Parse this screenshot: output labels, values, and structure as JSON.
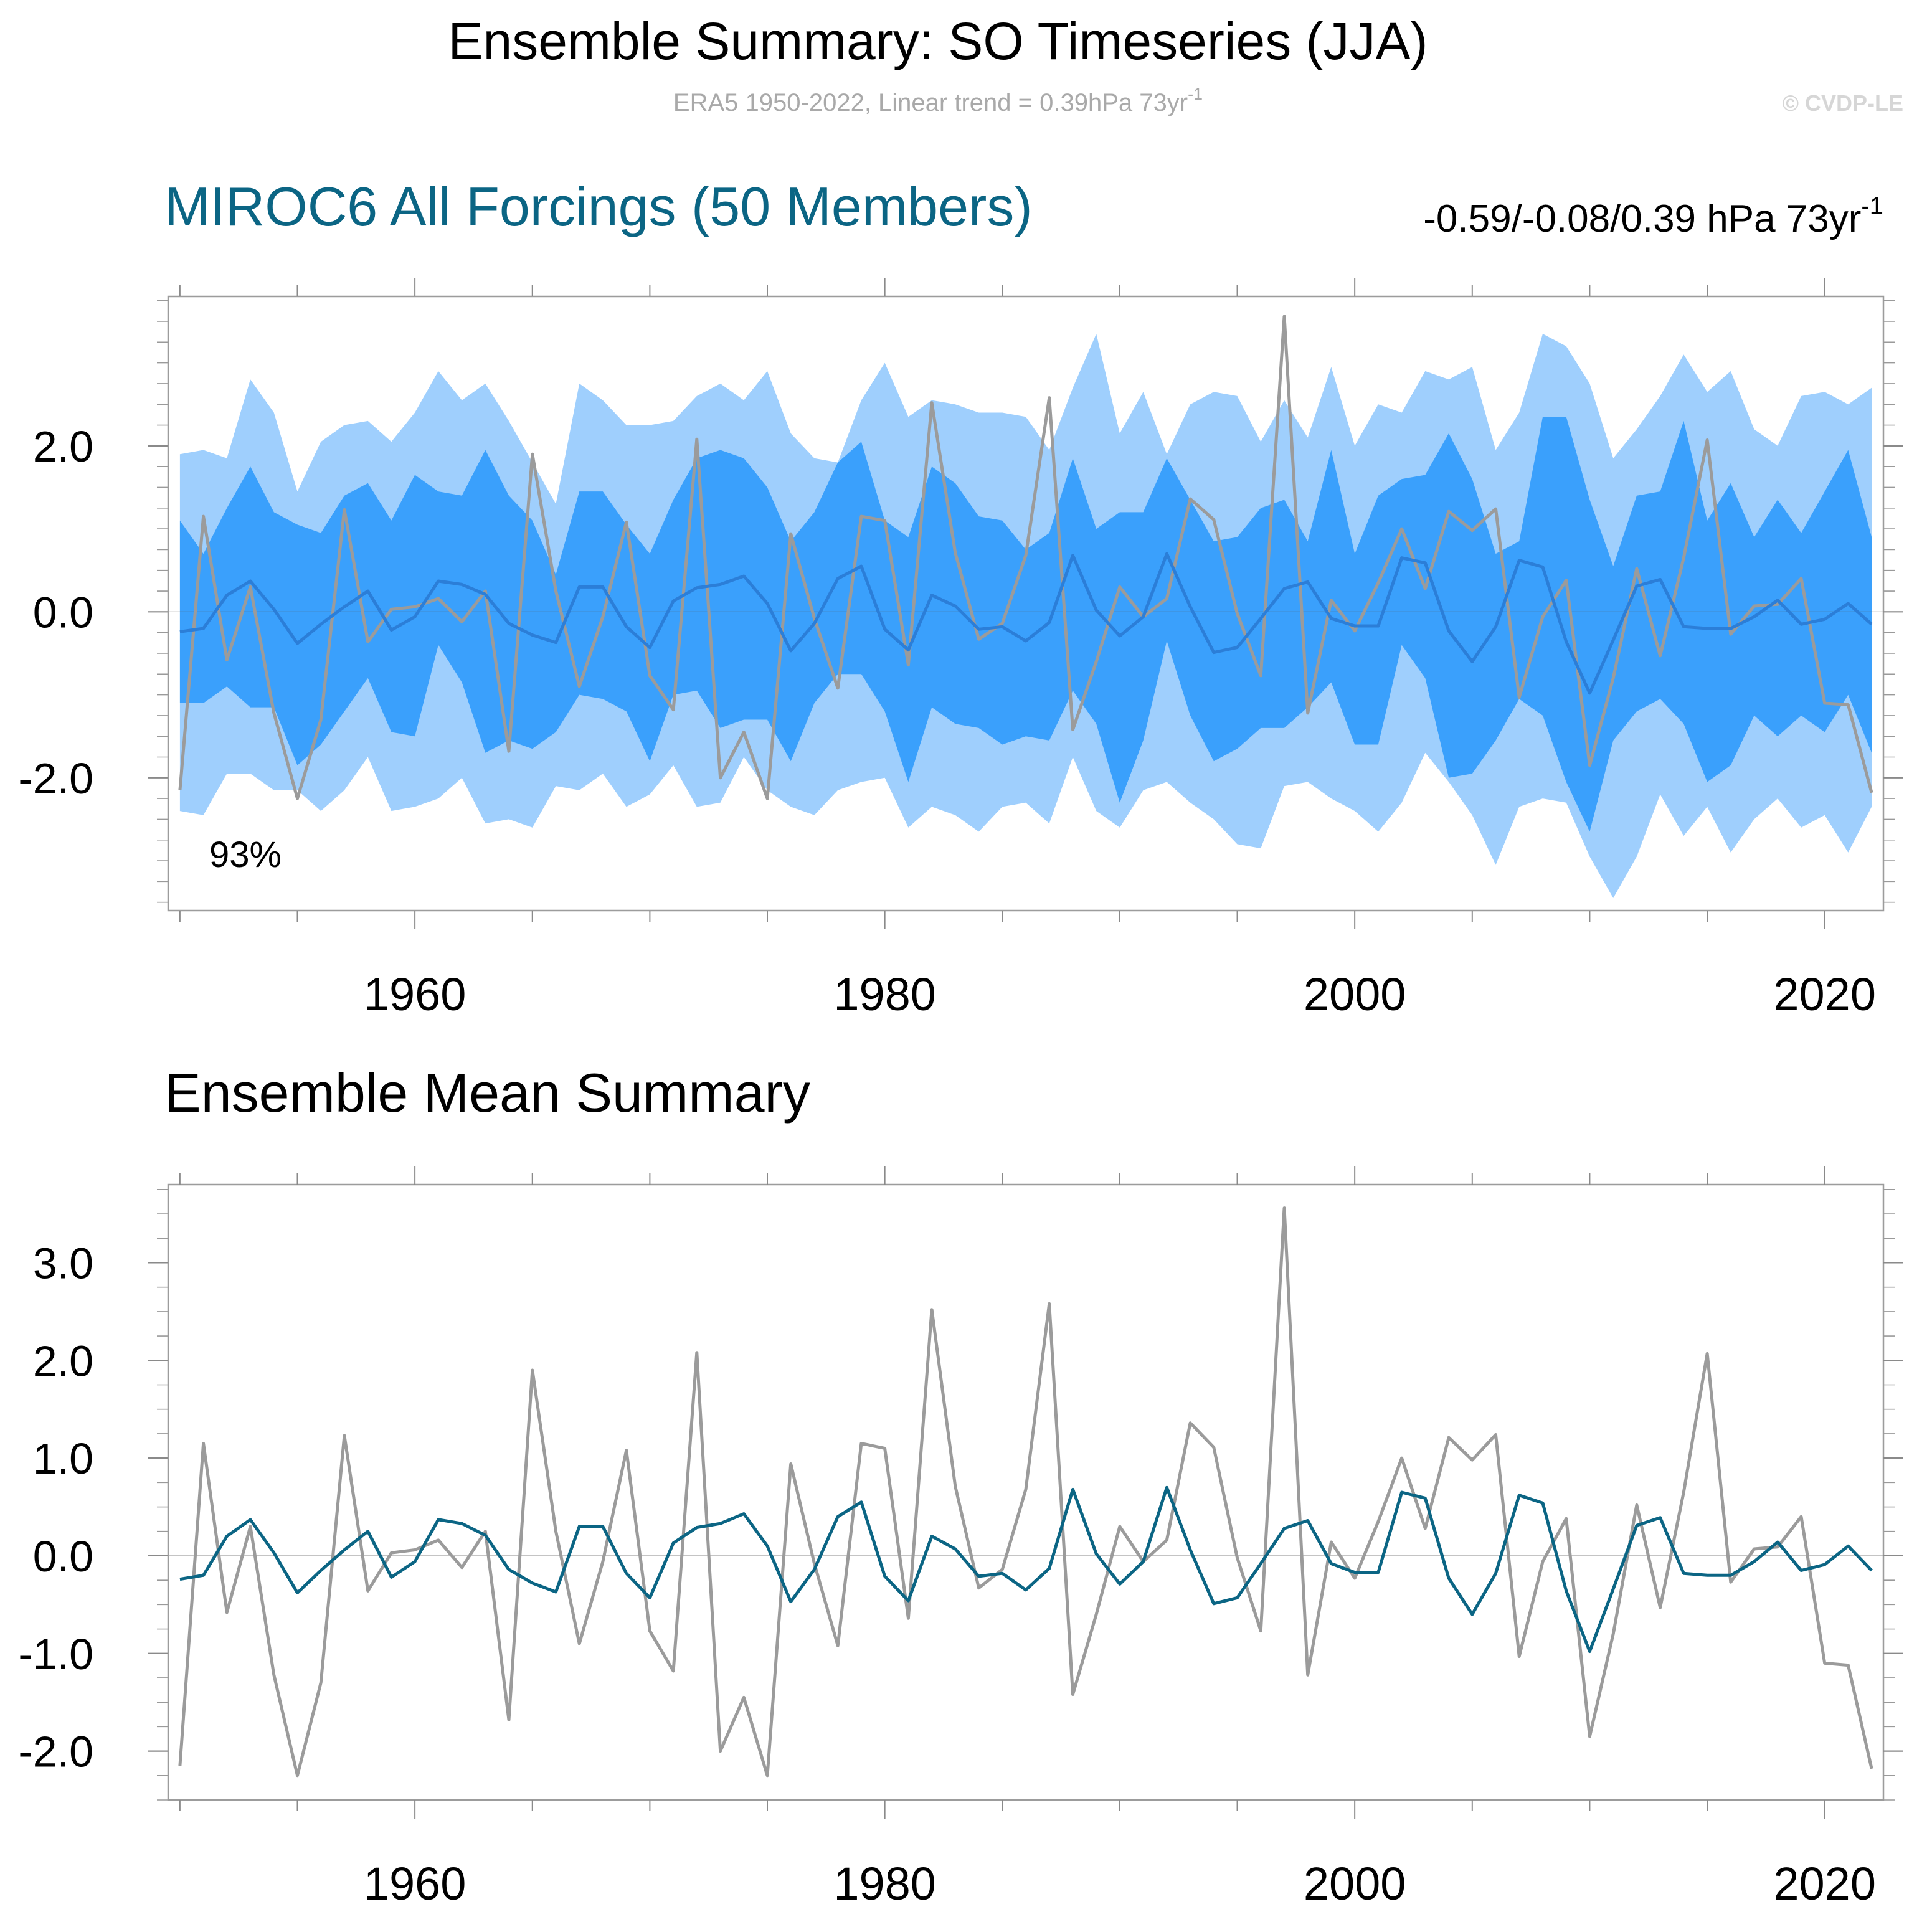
{
  "header": {
    "title": "Ensemble Summary: SO Timeseries (JJA)",
    "subtitle_main": "ERA5 1950-2022, Linear trend = 0.39hPa 73yr",
    "subtitle_sup": "-1",
    "watermark": "© CVDP-LE"
  },
  "colors": {
    "outer_band": "#9fcffd",
    "inner_band": "#3aa0fc",
    "top_ensemble_mean": "#2b7ed8",
    "bottom_ensemble_mean": "#0b6584",
    "observations": "#9b9b9b",
    "panel_title": "#0b6584",
    "frame": "#9c9c9c",
    "subtitle": "#a9a9a9",
    "watermark": "#d6d6d6"
  },
  "chart_data": [
    {
      "type": "area",
      "panel": "top",
      "title": "MIROC6 All Forcings (50 Members)",
      "trend_label_main": "-0.59/-0.08/0.39 hPa 73yr",
      "trend_label_sup": "-1",
      "annotation": "93%",
      "xlabel": "",
      "ylabel": "",
      "xlim": [
        1949.5,
        2022.5
      ],
      "ylim": [
        -3.6,
        3.8
      ],
      "x_ticks": [
        1960,
        1980,
        2000,
        2020
      ],
      "x_tick_labels": [
        "1960",
        "1980",
        "2000",
        "2020"
      ],
      "y_ticks": [
        -2,
        0,
        2
      ],
      "y_tick_labels": [
        "-2.0",
        "0.0",
        "2.0"
      ],
      "zero_line": true,
      "bands": [
        {
          "name": "min-max",
          "upper": [
            1.9,
            1.95,
            1.85,
            2.8,
            2.4,
            1.45,
            2.05,
            2.25,
            2.3,
            2.05,
            2.4,
            2.9,
            2.55,
            2.75,
            2.3,
            1.8,
            1.3,
            2.75,
            2.55,
            2.25,
            2.25,
            2.3,
            2.6,
            2.75,
            2.55,
            2.9,
            2.15,
            1.85,
            1.8,
            2.55,
            3.0,
            2.35,
            2.55,
            2.5,
            2.4,
            2.4,
            2.35,
            1.95,
            2.7,
            3.35,
            2.15,
            2.65,
            1.9,
            2.5,
            2.65,
            2.6,
            2.05,
            2.55,
            2.1,
            2.95,
            2.0,
            2.5,
            2.4,
            2.9,
            2.8,
            2.95,
            1.95,
            2.4,
            3.35,
            3.2,
            2.75,
            1.85,
            2.2,
            2.6,
            3.1,
            2.65,
            2.9,
            2.2,
            2.0,
            2.6,
            2.65,
            2.5,
            2.7
          ],
          "lower": [
            -2.4,
            -2.45,
            -1.95,
            -1.95,
            -2.15,
            -2.15,
            -2.4,
            -2.15,
            -1.75,
            -2.4,
            -2.35,
            -2.25,
            -2.0,
            -2.55,
            -2.5,
            -2.6,
            -2.1,
            -2.15,
            -1.95,
            -2.35,
            -2.2,
            -1.85,
            -2.35,
            -2.3,
            -1.75,
            -2.15,
            -2.35,
            -2.45,
            -2.15,
            -2.05,
            -2.0,
            -2.6,
            -2.35,
            -2.45,
            -2.65,
            -2.35,
            -2.3,
            -2.55,
            -1.75,
            -2.4,
            -2.6,
            -2.15,
            -2.05,
            -2.3,
            -2.5,
            -2.8,
            -2.85,
            -2.1,
            -2.05,
            -2.25,
            -2.4,
            -2.65,
            -2.3,
            -1.7,
            -2.05,
            -2.45,
            -3.05,
            -2.35,
            -2.25,
            -2.3,
            -2.95,
            -3.45,
            -2.95,
            -2.2,
            -2.7,
            -2.35,
            -2.9,
            -2.5,
            -2.25,
            -2.6,
            -2.45,
            -2.9,
            -2.35
          ]
        },
        {
          "name": "10-90 percentile",
          "upper": [
            1.1,
            0.7,
            1.25,
            1.75,
            1.2,
            1.05,
            0.95,
            1.4,
            1.55,
            1.1,
            1.65,
            1.45,
            1.4,
            1.95,
            1.4,
            1.1,
            0.45,
            1.45,
            1.45,
            1.05,
            0.7,
            1.35,
            1.85,
            1.95,
            1.85,
            1.5,
            0.85,
            1.2,
            1.8,
            2.05,
            1.1,
            0.9,
            1.75,
            1.55,
            1.15,
            1.1,
            0.75,
            0.95,
            1.85,
            1.0,
            1.2,
            1.2,
            1.85,
            1.35,
            0.85,
            0.9,
            1.25,
            1.35,
            0.85,
            1.95,
            0.7,
            1.4,
            1.6,
            1.65,
            2.15,
            1.6,
            0.7,
            0.85,
            2.35,
            2.35,
            1.35,
            0.55,
            1.4,
            1.45,
            2.3,
            1.1,
            1.55,
            0.9,
            1.35,
            0.95,
            1.45,
            1.95,
            0.9
          ],
          "lower": [
            -1.1,
            -1.1,
            -0.9,
            -1.15,
            -1.15,
            -1.85,
            -1.6,
            -1.2,
            -0.8,
            -1.45,
            -1.5,
            -0.4,
            -0.85,
            -1.7,
            -1.55,
            -1.65,
            -1.45,
            -1.0,
            -1.05,
            -1.2,
            -1.8,
            -1.0,
            -0.95,
            -1.4,
            -1.3,
            -1.3,
            -1.8,
            -1.1,
            -0.75,
            -0.75,
            -1.2,
            -2.05,
            -1.15,
            -1.35,
            -1.4,
            -1.6,
            -1.5,
            -1.55,
            -0.95,
            -1.35,
            -2.3,
            -1.55,
            -0.35,
            -1.25,
            -1.8,
            -1.65,
            -1.4,
            -1.4,
            -1.15,
            -0.85,
            -1.6,
            -1.6,
            -0.4,
            -0.8,
            -2.0,
            -1.95,
            -1.55,
            -1.05,
            -1.25,
            -2.05,
            -2.65,
            -1.55,
            -1.2,
            -1.05,
            -1.35,
            -2.05,
            -1.85,
            -1.25,
            -1.5,
            -1.25,
            -1.45,
            -1.0,
            -1.7
          ]
        }
      ],
      "series": [
        {
          "name": "ensemble mean",
          "values": [
            -0.24,
            -0.2,
            0.2,
            0.37,
            0.03,
            -0.38,
            -0.15,
            0.06,
            0.25,
            -0.22,
            -0.06,
            0.37,
            0.33,
            0.21,
            -0.14,
            -0.28,
            -0.37,
            0.3,
            0.3,
            -0.18,
            -0.43,
            0.13,
            0.29,
            0.33,
            0.43,
            0.1,
            -0.47,
            -0.14,
            0.4,
            0.55,
            -0.21,
            -0.46,
            0.2,
            0.07,
            -0.21,
            -0.18,
            -0.35,
            -0.13,
            0.68,
            0.02,
            -0.29,
            -0.06,
            0.7,
            0.06,
            -0.49,
            -0.43,
            -0.08,
            0.28,
            0.36,
            -0.08,
            -0.17,
            -0.17,
            0.65,
            0.59,
            -0.23,
            -0.6,
            -0.18,
            0.62,
            0.54,
            -0.36,
            -0.98,
            -0.34,
            0.31,
            0.39,
            -0.18,
            -0.2,
            -0.2,
            -0.06,
            0.14,
            -0.15,
            -0.09,
            0.1,
            -0.15
          ]
        },
        {
          "name": "ERA5",
          "values": [
            -2.15,
            1.15,
            -0.58,
            0.3,
            -1.22,
            -2.25,
            -1.3,
            1.23,
            -0.36,
            0.03,
            0.06,
            0.16,
            -0.12,
            0.25,
            -1.68,
            1.9,
            0.25,
            -0.9,
            -0.06,
            1.08,
            -0.77,
            -1.18,
            2.08,
            -2.0,
            -1.45,
            -2.25,
            0.94,
            -0.08,
            -0.92,
            1.15,
            1.1,
            -0.64,
            2.52,
            0.71,
            -0.33,
            -0.14,
            0.68,
            2.58,
            -1.42,
            -0.6,
            0.3,
            -0.06,
            0.16,
            1.36,
            1.11,
            -0.02,
            -0.77,
            3.56,
            -1.22,
            0.14,
            -0.23,
            0.35,
            1.0,
            0.28,
            1.21,
            0.98,
            1.24,
            -1.03,
            -0.06,
            0.38,
            -1.85,
            -0.8,
            0.52,
            -0.53,
            0.65,
            2.07,
            -0.27,
            0.07,
            0.09,
            0.4,
            -1.1,
            -1.12,
            -2.18
          ]
        }
      ]
    },
    {
      "type": "line",
      "panel": "bottom",
      "title": "Ensemble Mean Summary",
      "xlabel": "",
      "ylabel": "",
      "xlim": [
        1949.5,
        2022.5
      ],
      "ylim": [
        -2.5,
        3.8
      ],
      "x_ticks": [
        1960,
        1980,
        2000,
        2020
      ],
      "x_tick_labels": [
        "1960",
        "1980",
        "2000",
        "2020"
      ],
      "y_ticks": [
        -2,
        -1,
        0,
        1,
        2,
        3
      ],
      "y_tick_labels": [
        "-2.0",
        "-1.0",
        "0.0",
        "1.0",
        "2.0",
        "3.0"
      ],
      "zero_line": true,
      "series": [
        {
          "name": "ensemble mean",
          "values": [
            -0.24,
            -0.2,
            0.2,
            0.37,
            0.03,
            -0.38,
            -0.15,
            0.06,
            0.25,
            -0.22,
            -0.06,
            0.37,
            0.33,
            0.21,
            -0.14,
            -0.28,
            -0.37,
            0.3,
            0.3,
            -0.18,
            -0.43,
            0.13,
            0.29,
            0.33,
            0.43,
            0.1,
            -0.47,
            -0.14,
            0.4,
            0.55,
            -0.21,
            -0.46,
            0.2,
            0.07,
            -0.21,
            -0.18,
            -0.35,
            -0.13,
            0.68,
            0.02,
            -0.29,
            -0.06,
            0.7,
            0.06,
            -0.49,
            -0.43,
            -0.08,
            0.28,
            0.36,
            -0.08,
            -0.17,
            -0.17,
            0.65,
            0.59,
            -0.23,
            -0.6,
            -0.18,
            0.62,
            0.54,
            -0.36,
            -0.98,
            -0.34,
            0.31,
            0.39,
            -0.18,
            -0.2,
            -0.2,
            -0.06,
            0.14,
            -0.15,
            -0.09,
            0.1,
            -0.15
          ]
        },
        {
          "name": "ERA5",
          "values": [
            -2.15,
            1.15,
            -0.58,
            0.3,
            -1.22,
            -2.25,
            -1.3,
            1.23,
            -0.36,
            0.03,
            0.06,
            0.16,
            -0.12,
            0.25,
            -1.68,
            1.9,
            0.25,
            -0.9,
            -0.06,
            1.08,
            -0.77,
            -1.18,
            2.08,
            -2.0,
            -1.45,
            -2.25,
            0.94,
            -0.08,
            -0.92,
            1.15,
            1.1,
            -0.64,
            2.52,
            0.71,
            -0.33,
            -0.14,
            0.68,
            2.58,
            -1.42,
            -0.6,
            0.3,
            -0.06,
            0.16,
            1.36,
            1.11,
            -0.02,
            -0.77,
            3.56,
            -1.22,
            0.14,
            -0.23,
            0.35,
            1.0,
            0.28,
            1.21,
            0.98,
            1.24,
            -1.03,
            -0.06,
            0.38,
            -1.85,
            -0.8,
            0.52,
            -0.53,
            0.65,
            2.07,
            -0.27,
            0.07,
            0.09,
            0.4,
            -1.1,
            -1.12,
            -2.18
          ]
        }
      ]
    }
  ]
}
